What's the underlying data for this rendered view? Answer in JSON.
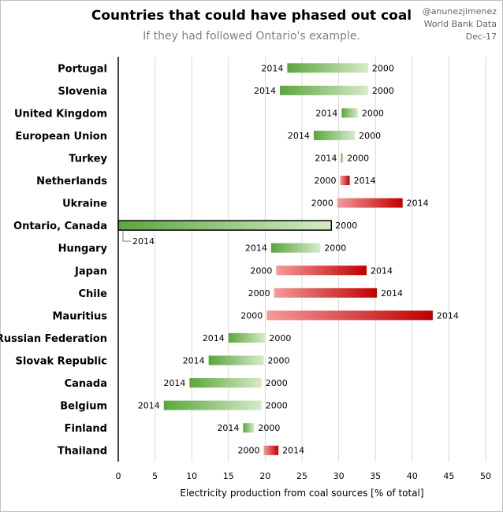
{
  "chart_data": {
    "type": "bar",
    "title": "Countries that could have phased out coal",
    "subtitle": "If they had followed Ontario's example.",
    "credits": [
      "@anunezjimenez",
      "World Bank Data",
      "Dec-17"
    ],
    "xlabel": "Electricity production from coal sources [% of total]",
    "xlim": [
      0,
      50
    ],
    "xticks": [
      0,
      5,
      10,
      15,
      20,
      25,
      30,
      35,
      40,
      45,
      50
    ],
    "year_start_label": "2000",
    "year_end_label": "2014",
    "colors": {
      "decrease_dark": "#5aa63c",
      "decrease_light": "#d6ebc8",
      "increase_light": "#f49a9a",
      "increase_dark": "#c00000",
      "highlight_border": "#000000",
      "gridline": "#d9d9d9"
    },
    "series": [
      {
        "name": "2000",
        "values": [
          34,
          34,
          32.6,
          32.2,
          30.6,
          30.2,
          29.8,
          29,
          27.5,
          21.5,
          21.2,
          20.2,
          20,
          19.8,
          19.5,
          19.5,
          18.5,
          19.8
        ]
      },
      {
        "name": "2014",
        "values": [
          23,
          22,
          30.4,
          26.6,
          30.3,
          31.5,
          38.7,
          0,
          20.8,
          33.8,
          35.2,
          42.8,
          15,
          12.3,
          9.7,
          6.2,
          17,
          21.8
        ]
      }
    ],
    "categories": [
      "Portugal",
      "Slovenia",
      "United Kingdom",
      "European Union",
      "Turkey",
      "Netherlands",
      "Ukraine",
      "Ontario, Canada",
      "Hungary",
      "Japan",
      "Chile",
      "Mauritius",
      "Russian Federation",
      "Slovak Republic",
      "Canada",
      "Belgium",
      "Finland",
      "Thailand"
    ],
    "highlight": "Ontario, Canada"
  }
}
